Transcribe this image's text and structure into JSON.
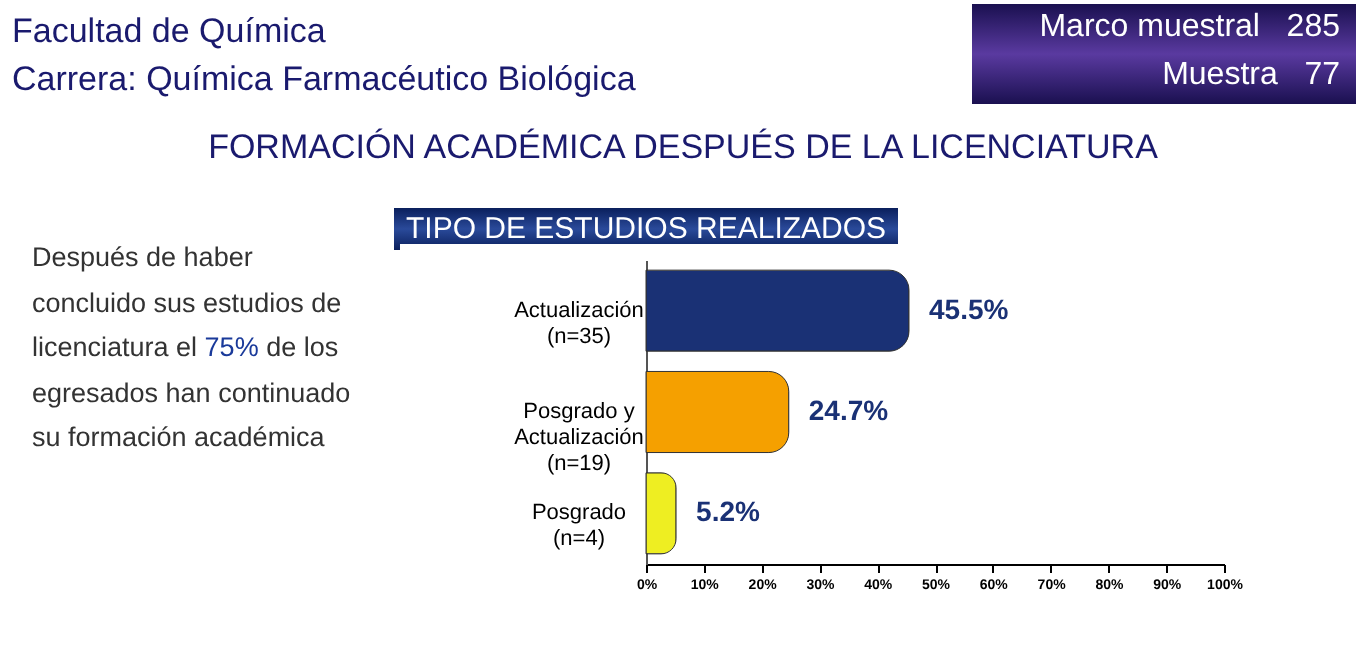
{
  "chart_data": {
    "type": "bar",
    "orientation": "horizontal",
    "title": "FORMACIÓN ACADÉMICA DESPUÉS DE LA LICENCIATURA",
    "subtitle": "TIPO DE ESTUDIOS REALIZADOS",
    "categories": [
      "Actualización\n(n=35)",
      "Posgrado y\nActualización\n(n=19)",
      "Posgrado\n(n=4)"
    ],
    "values": [
      45.5,
      24.7,
      5.2
    ],
    "colors": [
      "#1a3175",
      "#f5a000",
      "#eeee22"
    ],
    "value_labels": [
      "45.5%",
      "24.7%",
      "5.2%"
    ],
    "xlim": [
      0,
      100
    ],
    "xticks": [
      {
        "value": 0,
        "label": "0%"
      },
      {
        "value": 10,
        "label": "10%"
      },
      {
        "value": 20,
        "label": "20%"
      },
      {
        "value": 30,
        "label": "30%"
      },
      {
        "value": 40,
        "label": "40%"
      },
      {
        "value": 50,
        "label": "50%"
      },
      {
        "value": 60,
        "label": "60%"
      },
      {
        "value": 70,
        "label": "70%"
      },
      {
        "value": 80,
        "label": "80%"
      },
      {
        "value": 90,
        "label": "90%"
      },
      {
        "value": 100,
        "label": "100%"
      }
    ],
    "grid": false,
    "annotations": [
      "Facultad de Química",
      "Carrera: Química Farmacéutico Biológica",
      "Marco muestral   285",
      "Muestra   77",
      "Después de haber concluido sus estudios de licenciatura el 75% de los egresados han continuado su formación académica"
    ]
  }
}
